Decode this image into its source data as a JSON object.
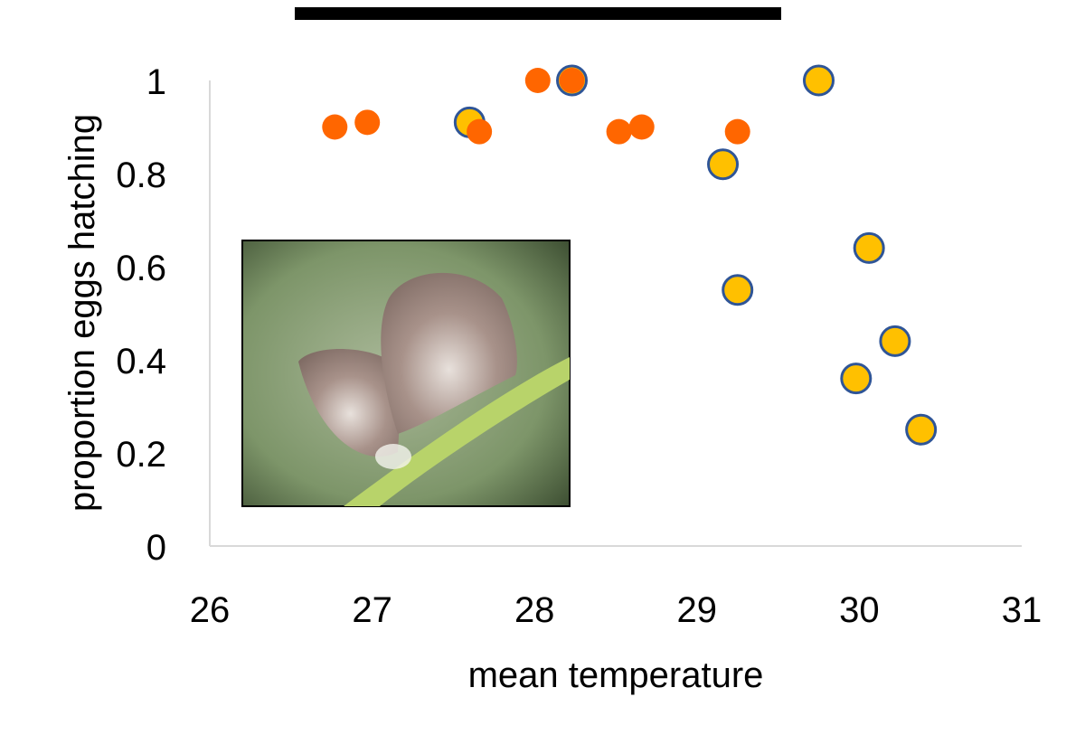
{
  "chart_data": {
    "type": "scatter",
    "title": "",
    "xlabel": "mean temperature",
    "ylabel": "proportion eggs hatching",
    "xlim": [
      26,
      31
    ],
    "ylim": [
      0,
      1
    ],
    "x_ticks": [
      "26",
      "27",
      "28",
      "29",
      "30",
      "31"
    ],
    "y_ticks": [
      "0",
      "0.2",
      "0.4",
      "0.6",
      "0.8",
      "1"
    ],
    "grid": false,
    "legend": "none",
    "series": [
      {
        "color": "#ffc000",
        "outline": "#2f5597",
        "points": [
          {
            "x": 27.6,
            "y": 0.91
          },
          {
            "x": 28.23,
            "y": 1.0
          },
          {
            "x": 29.75,
            "y": 1.0
          },
          {
            "x": 29.16,
            "y": 0.82
          },
          {
            "x": 30.06,
            "y": 0.64
          },
          {
            "x": 29.25,
            "y": 0.55
          },
          {
            "x": 30.22,
            "y": 0.44
          },
          {
            "x": 29.98,
            "y": 0.36
          },
          {
            "x": 30.38,
            "y": 0.25
          }
        ]
      },
      {
        "color": "#ff6600",
        "points": [
          {
            "x": 26.77,
            "y": 0.9
          },
          {
            "x": 26.97,
            "y": 0.91
          },
          {
            "x": 27.66,
            "y": 0.89
          },
          {
            "x": 28.02,
            "y": 1.0
          },
          {
            "x": 28.23,
            "y": 1.0
          },
          {
            "x": 28.52,
            "y": 0.89
          },
          {
            "x": 28.66,
            "y": 0.9
          },
          {
            "x": 29.25,
            "y": 0.89
          }
        ]
      }
    ],
    "annotations": {
      "redaction_bar_color": "#000000",
      "inset_image": "butterfly-photo"
    }
  }
}
